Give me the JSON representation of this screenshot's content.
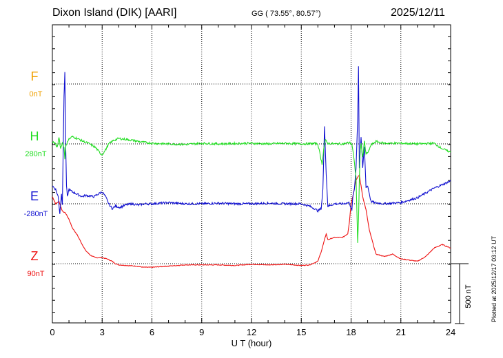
{
  "header": {
    "station": "Dixon Island (DIK)  [AARI]",
    "coords": "GG ( 73.55°,  80.57°)",
    "date": "2025/12/11"
  },
  "footer": {
    "plotted": "Plotted at 2025/12/17 03:12 UT"
  },
  "colors": {
    "F": "#f0a000",
    "H": "#22dd22",
    "E": "#1010d0",
    "Z": "#ee1111"
  },
  "chart_data": {
    "type": "line",
    "xlabel": "U T (hour)",
    "xlim": [
      0,
      24
    ],
    "xticks": [
      "0",
      "3",
      "6",
      "9",
      "12",
      "15",
      "18",
      "21",
      "24"
    ],
    "scale_bar_label": "500 nT",
    "scale_bar_nT": 500,
    "units": "nT",
    "series": [
      {
        "name": "F",
        "baseline": "0nT",
        "values": []
      },
      {
        "name": "H",
        "baseline": "280nT",
        "x": [
          0,
          0.15,
          0.3,
          0.4,
          0.5,
          0.6,
          0.7,
          0.75,
          0.8,
          0.9,
          1.0,
          1.2,
          1.5,
          1.8,
          2.0,
          2.3,
          2.6,
          2.9,
          3.0,
          3.2,
          3.4,
          3.7,
          4.0,
          4.3,
          4.6,
          5.0,
          5.4,
          6.0,
          7.0,
          8.0,
          9.0,
          10.0,
          11.0,
          12.0,
          13.0,
          14.0,
          15.0,
          15.8,
          16.0,
          16.15,
          16.25,
          16.35,
          16.45,
          16.6,
          17.0,
          17.5,
          17.9,
          18.05,
          18.15,
          18.3,
          18.4,
          18.45,
          18.5,
          18.55,
          18.6,
          18.7,
          18.8,
          18.9,
          19.0,
          19.2,
          19.5,
          20.0,
          21.0,
          22.0,
          23.0,
          23.5,
          24.0
        ],
        "values": [
          20,
          5,
          -30,
          60,
          -40,
          10,
          -30,
          -120,
          -30,
          20,
          40,
          60,
          45,
          25,
          15,
          -5,
          -30,
          -80,
          -90,
          -50,
          0,
          30,
          45,
          40,
          35,
          25,
          15,
          5,
          0,
          -5,
          5,
          0,
          3,
          5,
          0,
          5,
          0,
          3,
          0,
          -100,
          -170,
          -40,
          30,
          5,
          0,
          0,
          10,
          0,
          -100,
          -280,
          -820,
          -640,
          -300,
          -60,
          5,
          -120,
          20,
          -80,
          -80,
          -10,
          20,
          5,
          5,
          0,
          5,
          -40,
          -70
        ]
      },
      {
        "name": "E",
        "baseline": "-280nT",
        "x": [
          0,
          0.2,
          0.35,
          0.45,
          0.55,
          0.6,
          0.65,
          0.7,
          0.75,
          0.8,
          0.85,
          0.9,
          1.0,
          1.2,
          1.5,
          1.8,
          2.0,
          2.5,
          3.0,
          3.2,
          3.4,
          3.6,
          3.8,
          4.1,
          4.4,
          4.8,
          5.2,
          5.6,
          6.0,
          7.0,
          8.0,
          9.0,
          10.0,
          11.0,
          12.0,
          13.0,
          14.0,
          15.0,
          15.5,
          15.8,
          16.0,
          16.2,
          16.3,
          16.4,
          16.5,
          16.6,
          17.0,
          17.5,
          17.9,
          18.05,
          18.1,
          18.2,
          18.3,
          18.4,
          18.45,
          18.5,
          18.6,
          18.7,
          18.8,
          18.9,
          19.0,
          19.2,
          19.4,
          20.0,
          21.0,
          22.0,
          23.0,
          24.0
        ],
        "values": [
          150,
          120,
          60,
          -80,
          80,
          0,
          450,
          900,
          1100,
          500,
          150,
          60,
          120,
          100,
          80,
          60,
          70,
          60,
          100,
          60,
          0,
          -40,
          -20,
          -30,
          -10,
          0,
          -10,
          0,
          0,
          10,
          0,
          0,
          5,
          0,
          0,
          5,
          0,
          0,
          -20,
          -40,
          -60,
          -40,
          120,
          650,
          250,
          -20,
          0,
          0,
          10,
          -60,
          50,
          120,
          300,
          700,
          1150,
          300,
          560,
          300,
          480,
          140,
          150,
          20,
          10,
          0,
          10,
          50,
          130,
          190
        ]
      },
      {
        "name": "Z",
        "baseline": "90nT",
        "x": [
          0,
          0.2,
          0.4,
          0.6,
          0.8,
          1.0,
          1.2,
          1.5,
          1.8,
          2.0,
          2.3,
          2.6,
          3.0,
          3.3,
          3.6,
          3.8,
          4.0,
          4.5,
          5.0,
          5.5,
          6.0,
          7.0,
          8.0,
          9.0,
          10.0,
          11.0,
          12.0,
          13.0,
          14.0,
          15.0,
          15.5,
          16.0,
          16.2,
          16.4,
          16.5,
          16.6,
          17.0,
          17.5,
          17.8,
          17.9,
          18.0,
          18.1,
          18.3,
          18.5,
          18.7,
          18.9,
          19.1,
          19.3,
          19.5,
          20.0,
          20.5,
          21.0,
          21.5,
          22.0,
          22.5,
          23.0,
          23.5,
          24.0
        ],
        "values": [
          560,
          500,
          520,
          440,
          420,
          370,
          300,
          240,
          160,
          110,
          70,
          50,
          50,
          40,
          20,
          0,
          -10,
          -15,
          -20,
          -30,
          -30,
          -20,
          -10,
          -10,
          -10,
          -15,
          -5,
          -10,
          -5,
          -15,
          -10,
          20,
          100,
          200,
          250,
          200,
          220,
          220,
          250,
          350,
          500,
          560,
          700,
          740,
          560,
          450,
          280,
          180,
          80,
          60,
          80,
          40,
          30,
          20,
          60,
          130,
          160,
          130
        ]
      }
    ]
  }
}
